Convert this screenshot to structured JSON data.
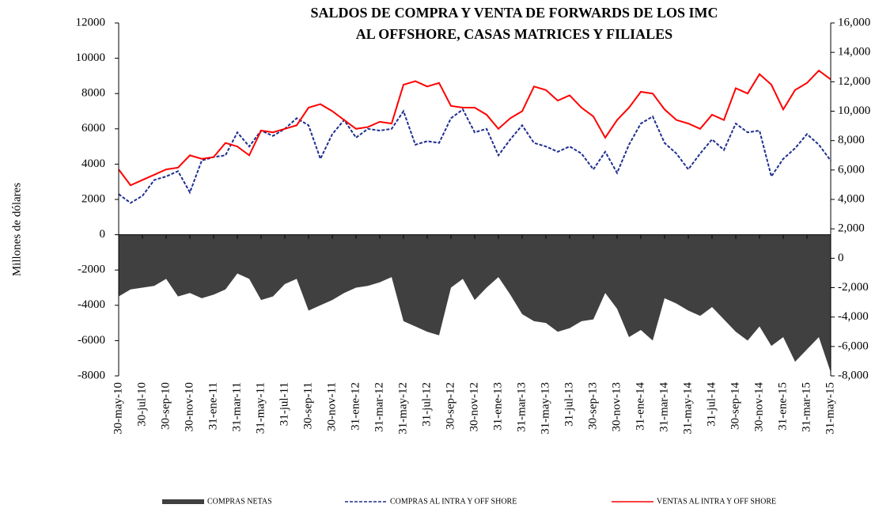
{
  "chart_data": {
    "type": "area_line",
    "title": [
      "SALDOS DE COMPRA Y VENTA DE FORWARDS DE LOS IMC",
      "AL OFFSHORE, CASAS MATRICES Y FILIALES"
    ],
    "ylabel": "Millones de dólares",
    "categories": [
      "30-may-10",
      null,
      "30-jul-10",
      null,
      "30-sep-10",
      null,
      "30-nov-10",
      null,
      "31-ene-11",
      null,
      "31-mar-11",
      null,
      "31-may-11",
      null,
      "31-jul-11",
      null,
      "30-sep-11",
      null,
      "30-nov-11",
      null,
      "31-ene-12",
      null,
      "31-mar-12",
      null,
      "31-may-12",
      null,
      "31-jul-12",
      null,
      "30-sep-12",
      null,
      "30-nov-12",
      null,
      "31-ene-13",
      null,
      "31-mar-13",
      null,
      "31-may-13",
      null,
      "31-jul-13",
      null,
      "30-sep-13",
      null,
      "30-nov-13",
      null,
      "31-ene-14",
      null,
      "31-mar-14",
      null,
      "31-may-14",
      null,
      "31-jul-14",
      null,
      "30-sep-14",
      null,
      "30-nov-14",
      null,
      "31-ene-15",
      null,
      "31-mar-15",
      null,
      "31-may-15"
    ],
    "series": [
      {
        "name": "COMPRAS NETAS",
        "kind": "area",
        "color": "#404040",
        "values": [
          -3500,
          -3100,
          -3000,
          -2900,
          -2500,
          -3500,
          -3300,
          -3600,
          -3400,
          -3100,
          -2200,
          -2500,
          -3700,
          -3500,
          -2800,
          -2500,
          -4300,
          -4000,
          -3700,
          -3300,
          -3000,
          -2900,
          -2700,
          -2400,
          -4900,
          -5200,
          -5500,
          -5700,
          -3000,
          -2500,
          -3700,
          -3000,
          -2400,
          -3400,
          -4500,
          -4900,
          -5000,
          -5500,
          -5300,
          -4900,
          -4800,
          -3300,
          -4200,
          -5800,
          -5400,
          -6000,
          -3600,
          -3900,
          -4300,
          -4600,
          -4100,
          -4800,
          -5500,
          -6000,
          -5200,
          -6300,
          -5800,
          -7200,
          -6500,
          -5800,
          -7800
        ]
      },
      {
        "name": "COMPRAS AL INTRA Y OFF SHORE",
        "kind": "dashed",
        "color": "#1f2f8f",
        "values": [
          2300,
          1800,
          2200,
          3100,
          3300,
          3600,
          2400,
          4200,
          4400,
          4500,
          5800,
          5000,
          5900,
          5600,
          6000,
          6600,
          6200,
          4300,
          5700,
          6500,
          5500,
          6000,
          5900,
          6000,
          7000,
          5100,
          5300,
          5200,
          6600,
          7100,
          5800,
          6000,
          4500,
          5400,
          6200,
          5200,
          5000,
          4700,
          5000,
          4600,
          3700,
          4700,
          3500,
          5100,
          6300,
          6700,
          5200,
          4600,
          3700,
          4600,
          5400,
          4800,
          6300,
          5800,
          5900,
          3300,
          4300,
          4900,
          5700,
          5100,
          4200
        ]
      },
      {
        "name": "VENTAS AL INTRA Y OFF SHORE",
        "kind": "line",
        "color": "#ff0000",
        "values": [
          3700,
          2800,
          3100,
          3400,
          3700,
          3800,
          4500,
          4300,
          4400,
          5200,
          5000,
          4500,
          5900,
          5800,
          6000,
          6200,
          7200,
          7400,
          7000,
          6500,
          6000,
          6100,
          6400,
          6300,
          8500,
          8700,
          8400,
          8600,
          7300,
          7200,
          7200,
          6800,
          6000,
          6600,
          7000,
          8400,
          8200,
          7600,
          7900,
          7200,
          6700,
          5500,
          6500,
          7200,
          8100,
          8000,
          7100,
          6500,
          6300,
          6000,
          6800,
          6500,
          8300,
          8000,
          9100,
          8500,
          7100,
          8200,
          8600,
          9300,
          8800
        ]
      }
    ],
    "ylim": [
      -8000,
      12000
    ],
    "yticks": [
      -8000,
      -6000,
      -4000,
      -2000,
      0,
      2000,
      4000,
      6000,
      8000,
      10000,
      12000
    ],
    "y2lim": [
      -8000,
      16000
    ],
    "y2ticks": [
      {
        "value": -8000,
        "label": "-8,000"
      },
      {
        "value": -6000,
        "label": "-6,000"
      },
      {
        "value": -4000,
        "label": "-4,000"
      },
      {
        "value": -2000,
        "label": "-2,000"
      },
      0,
      {
        "value": 2000,
        "label": "2,000"
      },
      {
        "value": 4000,
        "label": "4,000"
      },
      {
        "value": 6000,
        "label": "6,000"
      },
      {
        "value": 8000,
        "label": "8,000"
      },
      {
        "value": 10000,
        "label": "10,000"
      },
      {
        "value": 12000,
        "label": "12,000"
      },
      {
        "value": 14000,
        "label": "14,000"
      },
      {
        "value": 16000,
        "label": "16,000"
      }
    ],
    "legend": "bottom"
  }
}
